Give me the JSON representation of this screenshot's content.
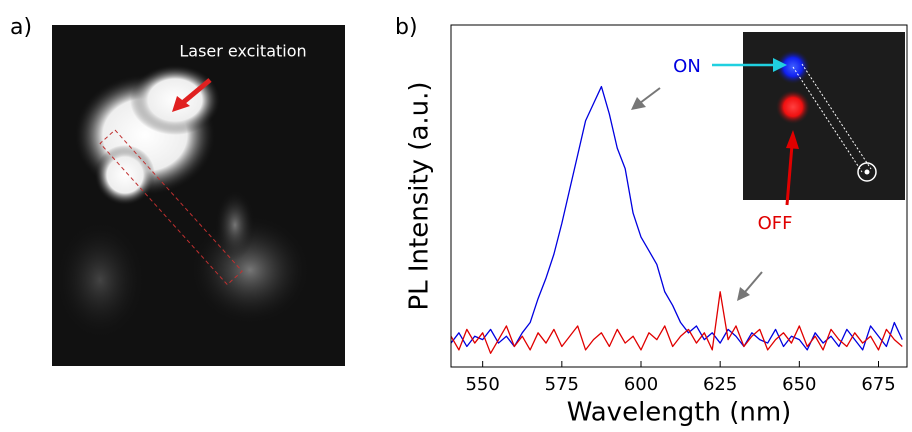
{
  "panel_a": {
    "label": "a)",
    "annotation": "Laser excitation"
  },
  "chart_data": {
    "type": "line",
    "panel_label": "b)",
    "x_label": "Wavelength (nm)",
    "y_label": "PL  Intensity (a.u.)",
    "x": [
      540,
      542.5,
      545,
      547.5,
      550,
      552.5,
      555,
      557.5,
      560,
      562.5,
      565,
      567.5,
      570,
      572.5,
      575,
      577.5,
      580,
      582.5,
      585,
      587.5,
      590,
      592.5,
      595,
      597.5,
      600,
      602.5,
      605,
      607.5,
      610,
      612.5,
      615,
      617.5,
      620,
      622.5,
      625,
      627.5,
      630,
      632.5,
      635,
      637.5,
      640,
      642.5,
      645,
      647.5,
      650,
      652.5,
      655,
      657.5,
      660,
      662.5,
      665,
      667.5,
      670,
      672.5,
      675,
      677.5,
      680,
      682.5
    ],
    "series": [
      {
        "name": "ON",
        "color": "#0000e0",
        "values": [
          0.07,
          0.1,
          0.06,
          0.09,
          0.08,
          0.11,
          0.07,
          0.09,
          0.06,
          0.1,
          0.13,
          0.2,
          0.26,
          0.33,
          0.42,
          0.52,
          0.62,
          0.72,
          0.77,
          0.82,
          0.74,
          0.64,
          0.58,
          0.45,
          0.38,
          0.34,
          0.3,
          0.22,
          0.18,
          0.13,
          0.1,
          0.12,
          0.08,
          0.1,
          0.07,
          0.11,
          0.09,
          0.06,
          0.1,
          0.08,
          0.07,
          0.11,
          0.06,
          0.09,
          0.08,
          0.05,
          0.1,
          0.07,
          0.09,
          0.06,
          0.11,
          0.08,
          0.05,
          0.12,
          0.09,
          0.06,
          0.13,
          0.08
        ]
      },
      {
        "name": "OFF",
        "color": "#e00000",
        "values": [
          0.09,
          0.05,
          0.11,
          0.07,
          0.1,
          0.04,
          0.08,
          0.12,
          0.06,
          0.09,
          0.05,
          0.1,
          0.07,
          0.11,
          0.06,
          0.09,
          0.12,
          0.05,
          0.08,
          0.1,
          0.06,
          0.11,
          0.07,
          0.09,
          0.05,
          0.1,
          0.08,
          0.12,
          0.06,
          0.09,
          0.11,
          0.07,
          0.1,
          0.05,
          0.22,
          0.08,
          0.12,
          0.06,
          0.09,
          0.11,
          0.05,
          0.08,
          0.1,
          0.07,
          0.12,
          0.06,
          0.09,
          0.05,
          0.11,
          0.08,
          0.06,
          0.1,
          0.07,
          0.09,
          0.05,
          0.11,
          0.08,
          0.06
        ]
      }
    ],
    "xlim": [
      540,
      684
    ],
    "ylim": [
      0,
      1
    ],
    "xticks": [
      550,
      575,
      600,
      625,
      650,
      675
    ]
  }
}
